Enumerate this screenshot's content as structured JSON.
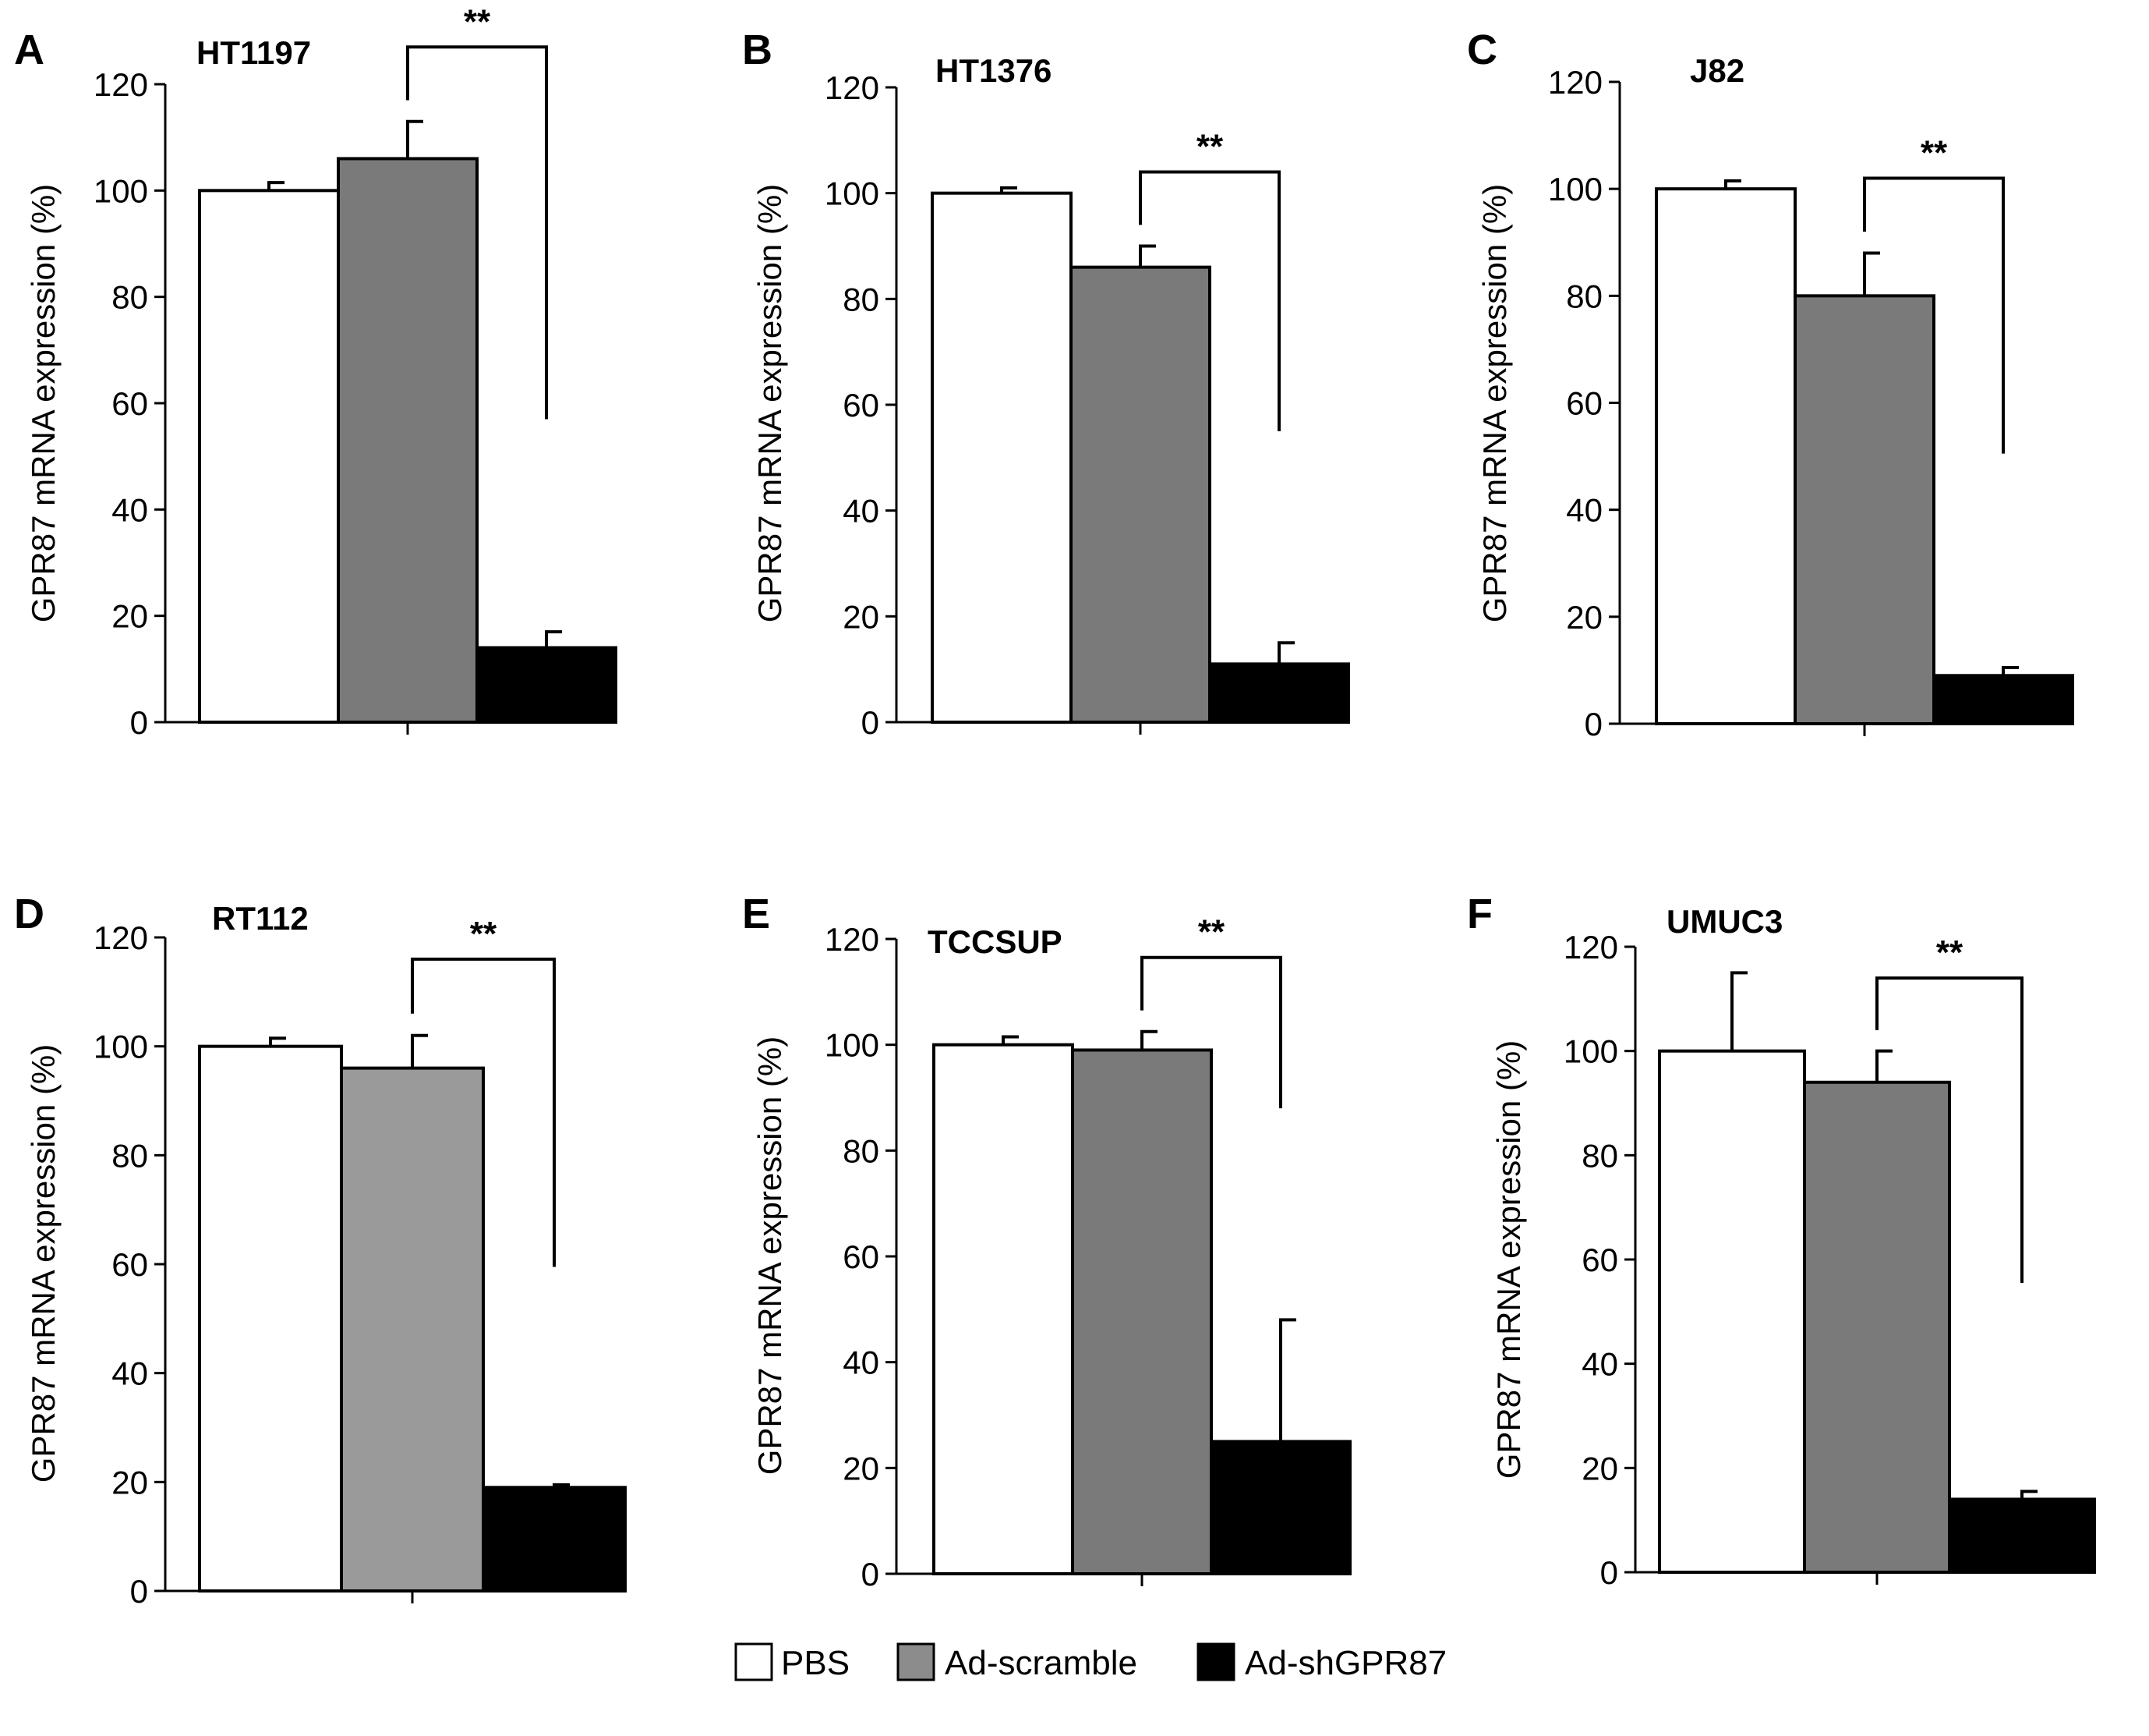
{
  "legend": {
    "items": [
      {
        "label": "PBS",
        "color": "#ffffff"
      },
      {
        "label": "Ad-scramble",
        "color": "#8c8c8c"
      },
      {
        "label": "Ad-shGPR87",
        "color": "#000000"
      }
    ]
  },
  "chart_data": [
    {
      "type": "bar",
      "panel": "A",
      "title": "HT1197",
      "ylabel": "GPR87 mRNA expression (%)",
      "ylim": [
        0,
        120
      ],
      "yticks": [
        "0",
        "20",
        "40",
        "60",
        "80",
        "100",
        "120"
      ],
      "categories": [
        "PBS",
        "Ad-scramble",
        "Ad-shGPR87"
      ],
      "values": [
        100,
        106,
        14
      ],
      "errors": [
        1.5,
        7,
        3
      ],
      "colors": [
        "#ffffff",
        "#7a7a7a",
        "#000000"
      ],
      "significance": "**"
    },
    {
      "type": "bar",
      "panel": "B",
      "title": "HT1376",
      "ylabel": "GPR87 mRNA expression (%)",
      "ylim": [
        0,
        120
      ],
      "yticks": [
        "0",
        "20",
        "40",
        "60",
        "80",
        "100",
        "120"
      ],
      "categories": [
        "PBS",
        "Ad-scramble",
        "Ad-shGPR87"
      ],
      "values": [
        100,
        86,
        11
      ],
      "errors": [
        1,
        4,
        4
      ],
      "colors": [
        "#ffffff",
        "#7a7a7a",
        "#000000"
      ],
      "significance": "**"
    },
    {
      "type": "bar",
      "panel": "C",
      "title": "J82",
      "ylabel": "GPR87 mRNA expression (%)",
      "ylim": [
        0,
        120
      ],
      "yticks": [
        "0",
        "20",
        "40",
        "60",
        "80",
        "100",
        "120"
      ],
      "categories": [
        "PBS",
        "Ad-scramble",
        "Ad-shGPR87"
      ],
      "values": [
        100,
        80,
        9
      ],
      "errors": [
        1.5,
        8,
        1.5
      ],
      "colors": [
        "#ffffff",
        "#7a7a7a",
        "#000000"
      ],
      "significance": "**"
    },
    {
      "type": "bar",
      "panel": "D",
      "title": "RT112",
      "ylabel": "GPR87 mRNA expression (%)",
      "ylim": [
        0,
        120
      ],
      "yticks": [
        "0",
        "20",
        "40",
        "60",
        "80",
        "100",
        "120"
      ],
      "categories": [
        "PBS",
        "Ad-scramble",
        "Ad-shGPR87"
      ],
      "values": [
        100,
        96,
        19
      ],
      "errors": [
        1.5,
        6,
        0.5
      ],
      "colors": [
        "#ffffff",
        "#9a9a9a",
        "#000000"
      ],
      "significance": "**"
    },
    {
      "type": "bar",
      "panel": "E",
      "title": "TCCSUP",
      "ylabel": "GPR87 mRNA expression (%)",
      "ylim": [
        0,
        120
      ],
      "yticks": [
        "0",
        "20",
        "40",
        "60",
        "80",
        "100",
        "120"
      ],
      "categories": [
        "PBS",
        "Ad-scramble",
        "Ad-shGPR87"
      ],
      "values": [
        100,
        99,
        25
      ],
      "errors": [
        1.5,
        3.5,
        23
      ],
      "colors": [
        "#ffffff",
        "#7a7a7a",
        "#000000"
      ],
      "significance": "**"
    },
    {
      "type": "bar",
      "panel": "F",
      "title": "UMUC3",
      "ylabel": "GPR87 mRNA expression (%)",
      "ylim": [
        0,
        120
      ],
      "yticks": [
        "0",
        "20",
        "40",
        "60",
        "80",
        "100",
        "120"
      ],
      "categories": [
        "PBS",
        "Ad-scramble",
        "Ad-shGPR87"
      ],
      "values": [
        100,
        94,
        14
      ],
      "errors": [
        15,
        6,
        1.5
      ],
      "colors": [
        "#ffffff",
        "#7a7a7a",
        "#000000"
      ],
      "significance": "**"
    }
  ]
}
